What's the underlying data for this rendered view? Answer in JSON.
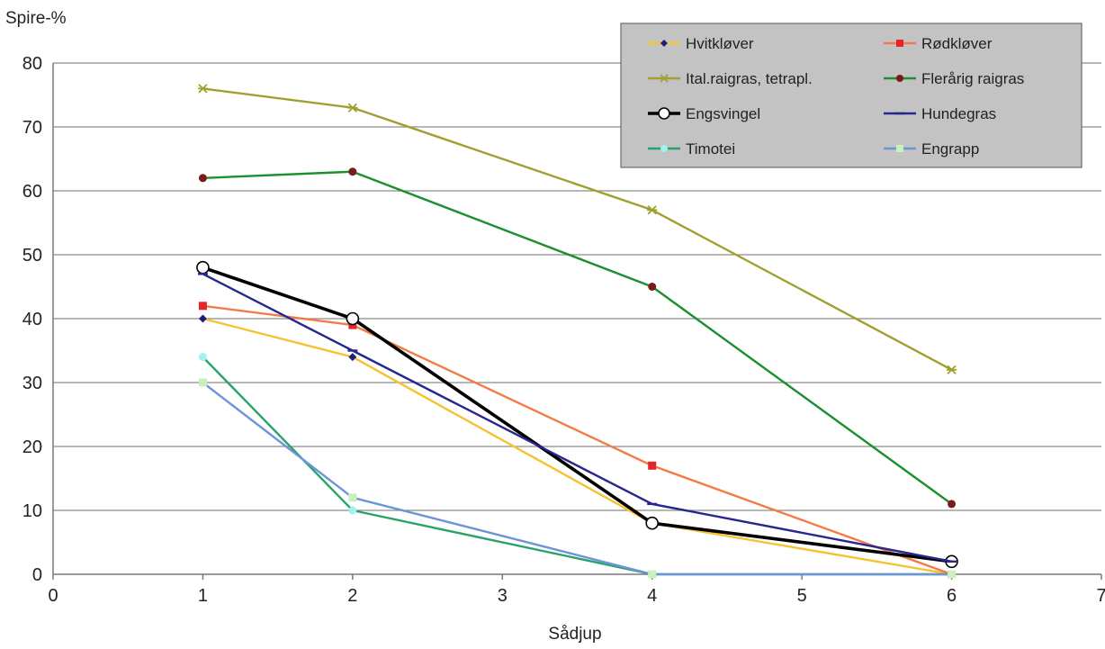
{
  "chart_data": {
    "type": "line",
    "ylabel": "Spire-%",
    "xlabel": "Sådjup",
    "xlim": [
      0,
      7
    ],
    "ylim": [
      0,
      80
    ],
    "x_ticks": [
      "0",
      "1",
      "2",
      "3",
      "4",
      "5",
      "6",
      "7"
    ],
    "y_ticks": [
      "0",
      "10",
      "20",
      "30",
      "40",
      "50",
      "60",
      "70",
      "80"
    ],
    "grid": "horizontal",
    "legend_position": "top-right",
    "x": [
      1,
      2,
      4,
      6
    ],
    "series": [
      {
        "name": "Hvitkløver",
        "values": [
          40,
          34,
          8,
          0
        ],
        "color": "#f5c231",
        "marker": "diamond",
        "marker_color": "#1f1f7a"
      },
      {
        "name": "Rødkløver",
        "values": [
          42,
          39,
          17,
          0
        ],
        "color": "#f47a46",
        "marker": "square",
        "marker_color": "#e3262a"
      },
      {
        "name": "Ital.raigras, tetrapl.",
        "values": [
          76,
          73,
          57,
          32
        ],
        "color": "#a0a030",
        "marker": "star",
        "marker_color": "#a0a030"
      },
      {
        "name": "Flerårig raigras",
        "values": [
          62,
          63,
          45,
          11
        ],
        "color": "#1c8f2f",
        "marker": "circle",
        "marker_color": "#7a1a1a"
      },
      {
        "name": "Engsvingel",
        "values": [
          48,
          40,
          8,
          2
        ],
        "color": "#000000",
        "marker": "open-circle",
        "marker_color": "#000000"
      },
      {
        "name": "Hundegras",
        "values": [
          47,
          35,
          11,
          2
        ],
        "color": "#26268f",
        "marker": "dash",
        "marker_color": "#26268f"
      },
      {
        "name": "Timotei",
        "values": [
          34,
          10,
          0,
          0
        ],
        "color": "#2aa36a",
        "marker": "circle",
        "marker_color": "#9ff2f2"
      },
      {
        "name": "Engrapp",
        "values": [
          30,
          12,
          0,
          0
        ],
        "color": "#6c95d9",
        "marker": "square",
        "marker_color": "#c8f0c0"
      }
    ]
  }
}
